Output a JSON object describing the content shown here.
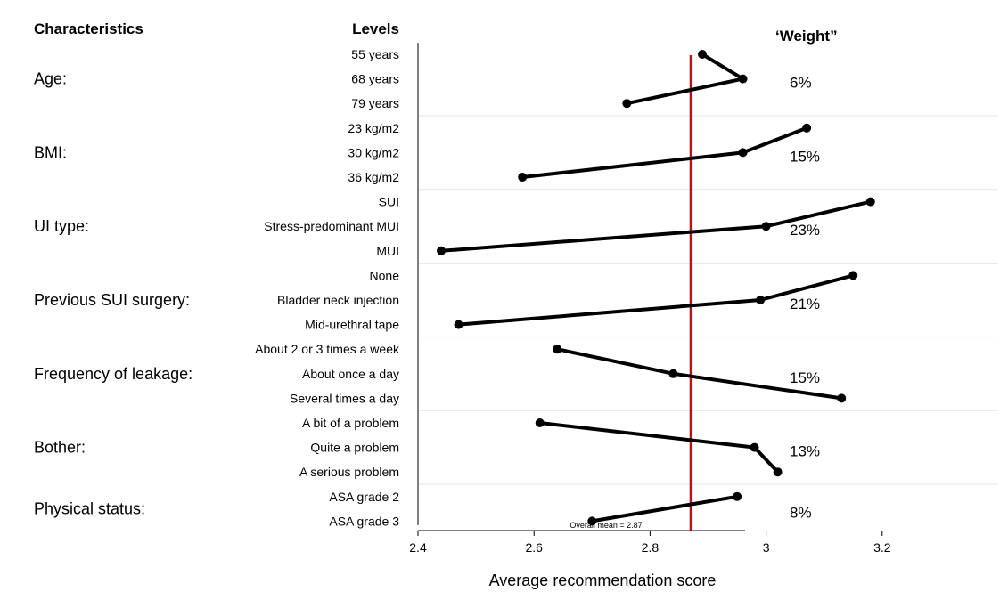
{
  "headers": {
    "characteristics": "Characteristics",
    "levels": "Levels",
    "weight": "‘Weight”"
  },
  "chart_data": {
    "type": "line",
    "title": "",
    "xlabel": "Average recommendation score",
    "ylabel": "",
    "xlim": [
      2.4,
      3.4
    ],
    "x_ticks": [
      2.4,
      2.6,
      2.8,
      3.0,
      3.2
    ],
    "x_tick_labels": [
      "2.4",
      "2.6",
      "2.8",
      "3",
      "3.2"
    ],
    "reference_line": {
      "value": 2.87,
      "label": "Overall mean = 2.87",
      "color": "#e00000"
    },
    "grid": "horizontal separators between characteristics",
    "groups": [
      {
        "characteristic": "Age:",
        "weight": "6%",
        "levels": [
          {
            "label": "55 years",
            "value": 2.89
          },
          {
            "label": "68 years",
            "value": 2.96
          },
          {
            "label": "79 years",
            "value": 2.76
          }
        ]
      },
      {
        "characteristic": "BMI:",
        "weight": "15%",
        "levels": [
          {
            "label": "23 kg/m2",
            "value": 3.07
          },
          {
            "label": "30 kg/m2",
            "value": 2.96
          },
          {
            "label": "36 kg/m2",
            "value": 2.58
          }
        ]
      },
      {
        "characteristic": "UI type:",
        "weight": "23%",
        "levels": [
          {
            "label": "SUI",
            "value": 3.18
          },
          {
            "label": "Stress-predominant MUI",
            "value": 3.0
          },
          {
            "label": "MUI",
            "value": 2.44
          }
        ]
      },
      {
        "characteristic": "Previous SUI surgery:",
        "weight": "21%",
        "levels": [
          {
            "label": "None",
            "value": 3.15
          },
          {
            "label": "Bladder neck injection",
            "value": 2.99
          },
          {
            "label": "Mid-urethral tape",
            "value": 2.47
          }
        ]
      },
      {
        "characteristic": "Frequency of leakage:",
        "weight": "15%",
        "levels": [
          {
            "label": "About 2 or 3 times a week",
            "value": 2.64
          },
          {
            "label": "About once a day",
            "value": 2.84
          },
          {
            "label": "Several times a day",
            "value": 3.13
          }
        ]
      },
      {
        "characteristic": "Bother:",
        "weight": "13%",
        "levels": [
          {
            "label": "A bit of a problem",
            "value": 2.61
          },
          {
            "label": "Quite a problem",
            "value": 2.98
          },
          {
            "label": "A serious problem",
            "value": 3.02
          }
        ]
      },
      {
        "characteristic": "Physical status:",
        "weight": "8%",
        "levels": [
          {
            "label": "ASA grade 2",
            "value": 2.95
          },
          {
            "label": "ASA grade 3",
            "value": 2.7
          }
        ]
      }
    ]
  }
}
